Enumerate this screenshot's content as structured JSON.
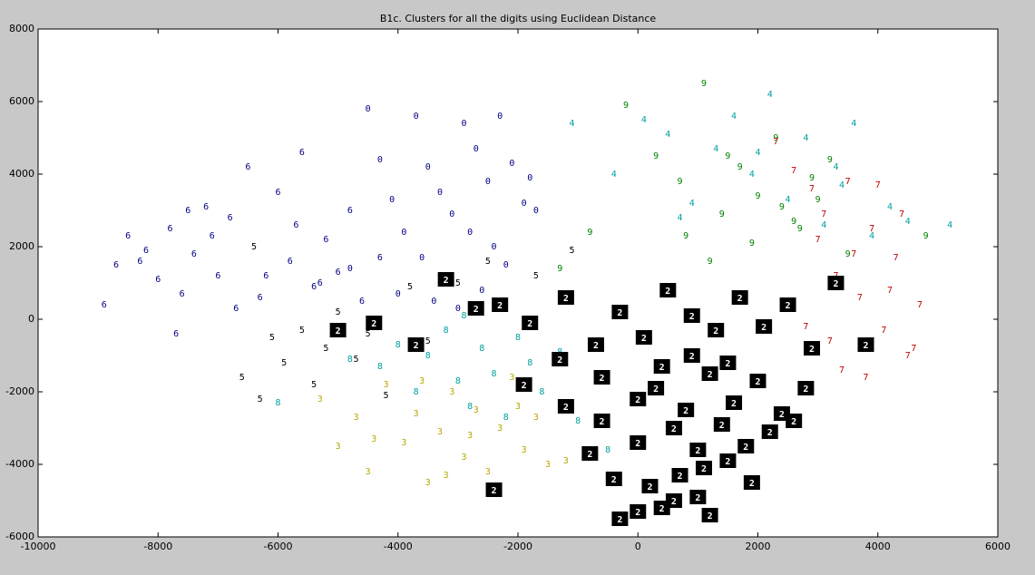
{
  "chart_data": {
    "type": "scatter",
    "title": "B1c. Clusters for all the digits using Euclidean Distance",
    "xlim": [
      -10000,
      6000
    ],
    "ylim": [
      -6000,
      8000
    ],
    "xticks": [
      -10000,
      -8000,
      -6000,
      -4000,
      -2000,
      0,
      2000,
      4000,
      6000
    ],
    "yticks": [
      -6000,
      -4000,
      -2000,
      0,
      2000,
      4000,
      6000,
      8000
    ],
    "grid": false,
    "series": [
      {
        "marker": "6",
        "color": "#000080",
        "style": "text",
        "x": [
          -8900,
          -8700,
          -8500,
          -8200,
          -8000,
          -7800,
          -7600,
          -7400,
          -7200,
          -7000,
          -6800,
          -6500,
          -6300,
          -6000,
          -5800,
          -5600,
          -5400,
          -5200,
          -5000,
          -4800,
          -4600,
          -4300,
          -7700,
          -7100,
          -6700,
          -6200,
          -5700,
          -5300,
          -8300,
          -7500
        ],
        "y": [
          400,
          1500,
          2300,
          1900,
          1100,
          2500,
          700,
          1800,
          3100,
          1200,
          2800,
          4200,
          600,
          3500,
          1600,
          4600,
          900,
          2200,
          1300,
          3000,
          500,
          1700,
          -400,
          2300,
          300,
          1200,
          2600,
          1000,
          1600,
          3000
        ]
      },
      {
        "marker": "0",
        "color": "#000080",
        "style": "text",
        "x": [
          -4500,
          -4300,
          -4100,
          -3900,
          -3700,
          -3500,
          -3300,
          -3100,
          -2900,
          -2700,
          -2500,
          -2300,
          -2100,
          -1900,
          -1700,
          -3600,
          -3200,
          -2800,
          -2400,
          -4000,
          -3400,
          -3000,
          -2600,
          -2200,
          -4800,
          -1800
        ],
        "y": [
          5800,
          4400,
          3300,
          2400,
          5600,
          4200,
          3500,
          2900,
          5400,
          4700,
          3800,
          5600,
          4300,
          3200,
          3000,
          1700,
          1100,
          2400,
          2000,
          700,
          500,
          300,
          800,
          1500,
          1400,
          3900
        ]
      },
      {
        "marker": "3",
        "color": "#b8a800",
        "style": "text",
        "x": [
          -5300,
          -5000,
          -4700,
          -4500,
          -4200,
          -3900,
          -3700,
          -3500,
          -3300,
          -3100,
          -2900,
          -2700,
          -2500,
          -2300,
          -2100,
          -1900,
          -1700,
          -1500,
          -4400,
          -3600,
          -2800,
          -2000,
          -1200,
          -3200
        ],
        "y": [
          -2200,
          -3500,
          -2700,
          -4200,
          -1800,
          -3400,
          -2600,
          -4500,
          -3100,
          -2000,
          -3800,
          -2500,
          -4200,
          -3000,
          -1600,
          -3600,
          -2700,
          -4000,
          -3300,
          -1700,
          -3200,
          -2400,
          -3900,
          -4300
        ]
      },
      {
        "marker": "8",
        "color": "#00a0a0",
        "style": "text",
        "x": [
          -4300,
          -4000,
          -3700,
          -3500,
          -3200,
          -3000,
          -2800,
          -2600,
          -2400,
          -2200,
          -2000,
          -1800,
          -1600,
          -1300,
          -6000,
          -4800,
          -1000,
          -500,
          -2900
        ],
        "y": [
          -1300,
          -700,
          -2000,
          -1000,
          -300,
          -1700,
          -2400,
          -800,
          -1500,
          -2700,
          -500,
          -1200,
          -2000,
          -900,
          -2300,
          -1100,
          -2800,
          -3600,
          100
        ]
      },
      {
        "marker": "5",
        "color": "#000000",
        "style": "text",
        "x": [
          -6600,
          -6300,
          -6100,
          -5900,
          -5600,
          -5400,
          -5200,
          -5000,
          -4700,
          -4500,
          -4200,
          -3800,
          -3500,
          -3000,
          -2500,
          -1700,
          -1100,
          -6400
        ],
        "y": [
          -1600,
          -2200,
          -500,
          -1200,
          -300,
          -1800,
          -800,
          200,
          -1100,
          -400,
          -2100,
          900,
          -600,
          1000,
          1600,
          1200,
          1900,
          2000
        ]
      },
      {
        "marker": "9",
        "color": "#008000",
        "style": "text",
        "x": [
          -800,
          -200,
          300,
          700,
          1100,
          1400,
          1700,
          2000,
          2300,
          2600,
          2900,
          3200,
          3500,
          1900,
          2400,
          1200,
          800,
          3000,
          2700,
          4800,
          1500,
          -1300
        ],
        "y": [
          2400,
          5900,
          4500,
          3800,
          6500,
          2900,
          4200,
          3400,
          5000,
          2700,
          3900,
          4400,
          1800,
          2100,
          3100,
          1600,
          2300,
          3300,
          2500,
          2300,
          4500,
          1400
        ]
      },
      {
        "marker": "4",
        "color": "#00a0a0",
        "style": "text",
        "x": [
          -1100,
          -400,
          100,
          500,
          900,
          1300,
          1600,
          1900,
          2200,
          2500,
          2800,
          3100,
          3400,
          3600,
          3900,
          4200,
          4500,
          5200,
          2000,
          3300,
          700
        ],
        "y": [
          5400,
          4000,
          5500,
          5100,
          3200,
          4700,
          5600,
          4000,
          6200,
          3300,
          5000,
          2600,
          3700,
          5400,
          2300,
          3100,
          2700,
          2600,
          4600,
          4200,
          2800
        ]
      },
      {
        "marker": "7",
        "color": "#c00000",
        "style": "text",
        "x": [
          2300,
          2600,
          2900,
          3100,
          3300,
          3500,
          3700,
          3900,
          4100,
          4300,
          4500,
          4700,
          3200,
          3600,
          4000,
          4400,
          2800,
          3400,
          3800,
          4200,
          4600,
          3000
        ],
        "y": [
          4900,
          4100,
          3600,
          2900,
          1200,
          3800,
          600,
          2500,
          -300,
          1700,
          -1000,
          400,
          -600,
          1800,
          3700,
          2900,
          -200,
          -1400,
          -1600,
          800,
          -800,
          2200
        ]
      },
      {
        "marker": "2",
        "color": "#000000",
        "style": "box",
        "x": [
          -5000,
          -4400,
          -3700,
          -3200,
          -2700,
          -2300,
          -1800,
          -1200,
          -700,
          -300,
          100,
          500,
          900,
          1300,
          1700,
          2100,
          2500,
          2900,
          3300,
          3800,
          -2400,
          -1900,
          -1200,
          -600,
          0,
          400,
          800,
          1200,
          1600,
          2000,
          2400,
          2800,
          -800,
          0,
          600,
          1000,
          1400,
          1800,
          2200,
          2600,
          -400,
          200,
          700,
          1100,
          1500,
          1900,
          -1300,
          -600,
          300,
          900,
          1500,
          0,
          600,
          1200,
          -300,
          400,
          1000
        ],
        "y": [
          -300,
          -100,
          -700,
          1100,
          300,
          400,
          -100,
          600,
          -700,
          200,
          -500,
          800,
          100,
          -300,
          600,
          -200,
          400,
          -800,
          1000,
          -700,
          -4700,
          -1800,
          -2400,
          -1600,
          -2200,
          -1300,
          -2500,
          -1500,
          -2300,
          -1700,
          -2600,
          -1900,
          -3700,
          -3400,
          -3000,
          -3600,
          -2900,
          -3500,
          -3100,
          -2800,
          -4400,
          -4600,
          -4300,
          -4100,
          -3900,
          -4500,
          -1100,
          -2800,
          -1900,
          -1000,
          -1200,
          -5300,
          -5000,
          -5400,
          -5500,
          -5200,
          -4900
        ]
      }
    ]
  }
}
